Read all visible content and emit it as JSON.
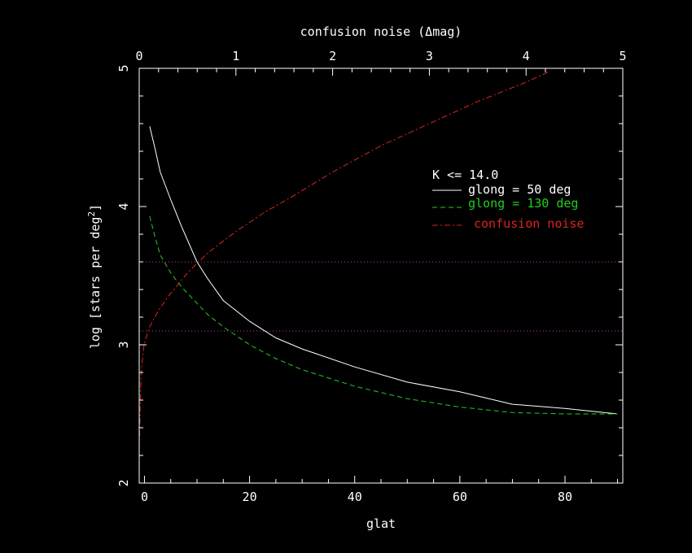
{
  "chart_data": {
    "type": "line",
    "title": "",
    "xlabel": "glat",
    "ylabel": "log [stars per deg",
    "ylabel_sup": "2",
    "ylabel_close": "]",
    "top_axis_label": "confusion noise (Δmag)",
    "xlim": [
      -1,
      91
    ],
    "ylim": [
      2,
      5
    ],
    "top_xlim": [
      0,
      5
    ],
    "x_ticks": [
      "0",
      "20",
      "40",
      "60",
      "80"
    ],
    "x_tick_values": [
      0,
      20,
      40,
      60,
      80
    ],
    "y_ticks": [
      "2",
      "3",
      "4",
      "5"
    ],
    "y_tick_values": [
      2,
      3,
      4,
      5
    ],
    "top_ticks": [
      "0",
      "1",
      "2",
      "3",
      "4",
      "5"
    ],
    "top_tick_values": [
      0,
      1,
      2,
      3,
      4,
      5
    ],
    "grid": false,
    "legend": {
      "placement": "upper-right",
      "header": "K <= 14.0",
      "entries": [
        "glong = 50 deg",
        "glong = 130 deg",
        "confusion noise"
      ]
    },
    "reference_lines": [
      {
        "y": 3.6,
        "color": "#cc33cc",
        "style": "dotted"
      },
      {
        "y": 3.1,
        "color": "#cc33cc",
        "style": "dotted"
      }
    ],
    "series": [
      {
        "name": "glong = 50 deg",
        "color": "#ffffff",
        "style": "solid",
        "axis": "bottom",
        "x": [
          1,
          2,
          3,
          5,
          7,
          10,
          12,
          15,
          20,
          25,
          30,
          40,
          50,
          60,
          70,
          80,
          90
        ],
        "y": [
          4.58,
          4.42,
          4.25,
          4.05,
          3.86,
          3.6,
          3.48,
          3.32,
          3.17,
          3.05,
          2.97,
          2.84,
          2.73,
          2.66,
          2.57,
          2.54,
          2.5
        ]
      },
      {
        "name": "glong = 130 deg",
        "color": "#22cc22",
        "style": "dashed",
        "axis": "bottom",
        "x": [
          1,
          2,
          3,
          5,
          7,
          10,
          12,
          15,
          20,
          25,
          30,
          40,
          50,
          60,
          70,
          80,
          90
        ],
        "y": [
          3.93,
          3.78,
          3.65,
          3.52,
          3.42,
          3.3,
          3.22,
          3.13,
          3.0,
          2.9,
          2.82,
          2.7,
          2.61,
          2.55,
          2.51,
          2.5,
          2.5
        ]
      },
      {
        "name": "confusion noise",
        "color": "#dd2222",
        "style": "dashdot",
        "axis": "top",
        "x": [
          0,
          0.02,
          0.05,
          0.1,
          0.2,
          0.3,
          0.5,
          0.7,
          1.0,
          1.3,
          1.6,
          2.0,
          2.5,
          3.0,
          3.5,
          4.0,
          4.25
        ],
        "y": [
          2.25,
          2.8,
          3.0,
          3.12,
          3.25,
          3.35,
          3.52,
          3.66,
          3.82,
          3.96,
          4.08,
          4.25,
          4.44,
          4.6,
          4.76,
          4.9,
          4.98
        ]
      }
    ]
  }
}
